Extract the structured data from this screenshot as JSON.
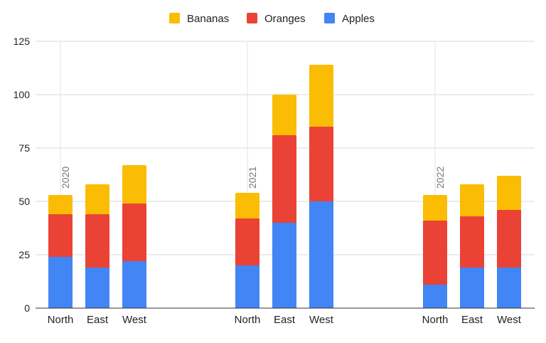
{
  "chart_data": {
    "type": "bar",
    "stacked": true,
    "groups": [
      {
        "label": "2020",
        "categories": [
          "North",
          "East",
          "West"
        ]
      },
      {
        "label": "2021",
        "categories": [
          "North",
          "East",
          "West"
        ]
      },
      {
        "label": "2022",
        "categories": [
          "North",
          "East",
          "West"
        ]
      }
    ],
    "series": [
      {
        "name": "Apples",
        "color": "#4285f4",
        "values": [
          24,
          19,
          22,
          20,
          40,
          50,
          11,
          19,
          19
        ]
      },
      {
        "name": "Oranges",
        "color": "#ea4335",
        "values": [
          20,
          25,
          27,
          22,
          41,
          35,
          30,
          24,
          27
        ]
      },
      {
        "name": "Bananas",
        "color": "#fbbc04",
        "values": [
          9,
          14,
          18,
          12,
          19,
          29,
          12,
          15,
          16
        ]
      }
    ],
    "legend_order": [
      "Bananas",
      "Oranges",
      "Apples"
    ],
    "legend_position": "top",
    "ylim": [
      0,
      125
    ],
    "yticks": [
      0,
      25,
      50,
      75,
      100,
      125
    ],
    "grid": true,
    "title": "",
    "xlabel": "",
    "ylabel": ""
  }
}
